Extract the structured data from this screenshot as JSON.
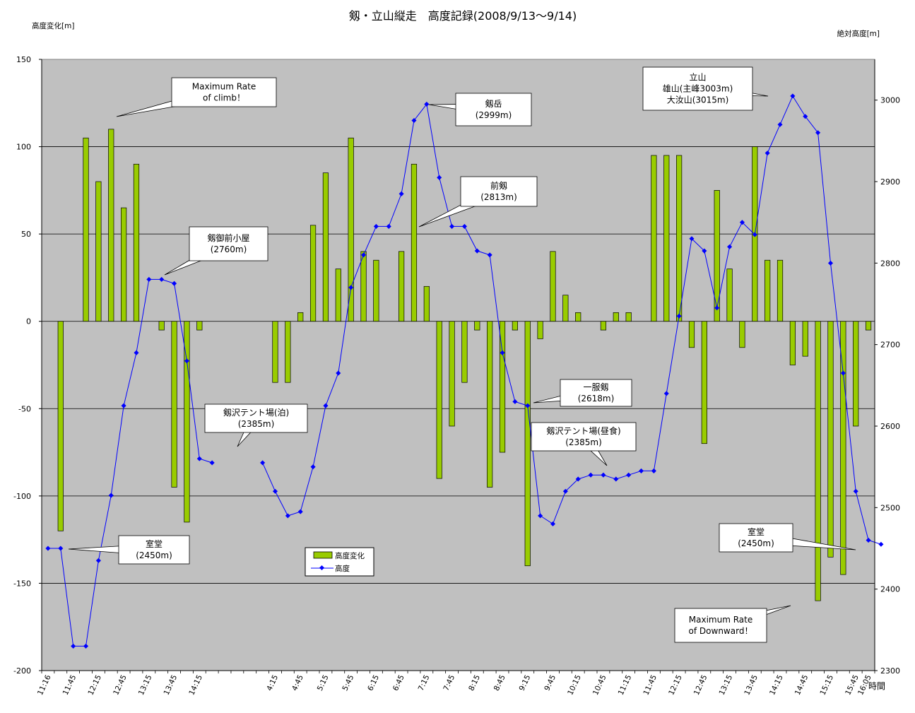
{
  "chart_data": {
    "type": "bar+line",
    "title": "剱・立山縦走　高度記録(2008/9/13～9/14)",
    "ylabel_left": "高度変化[m]",
    "ylabel_right": "絶対高度[m]",
    "xlabel": "時間",
    "ylim_left": [
      -200,
      150
    ],
    "yticks_left": [
      150,
      100,
      50,
      0,
      -50,
      -100,
      -150,
      -200
    ],
    "ylim_right": [
      2300,
      3050
    ],
    "yticks_right": [
      3000,
      2900,
      2800,
      2700,
      2600,
      2500,
      2400,
      2300
    ],
    "grid": true,
    "legend": {
      "placement": "bottom-center",
      "entries": [
        "高度変化",
        "高度"
      ]
    },
    "x_tick_labels": [
      "11:16",
      "11:45",
      "12:15",
      "12:45",
      "13:15",
      "13:45",
      "14:15",
      "4:15",
      "4:45",
      "5:15",
      "5:45",
      "6:15",
      "6:45",
      "7:15",
      "7:45",
      "8:15",
      "8:45",
      "9:15",
      "9:45",
      "10:15",
      "10:45",
      "11:15",
      "11:45",
      "12:15",
      "12:45",
      "13:15",
      "13:45",
      "14:15",
      "14:45",
      "15:15",
      "15:45",
      "16:05"
    ],
    "x_tick_slots": [
      0,
      2,
      4,
      6,
      8,
      10,
      12,
      18,
      20,
      22,
      24,
      26,
      28,
      30,
      32,
      34,
      36,
      38,
      40,
      42,
      44,
      46,
      48,
      50,
      52,
      54,
      56,
      58,
      60,
      62,
      64,
      65
    ],
    "n_slots": 66,
    "series": [
      {
        "name": "高度変化",
        "kind": "bar",
        "values": [
          null,
          -120,
          null,
          105,
          80,
          110,
          65,
          90,
          null,
          -5,
          -95,
          -115,
          -5,
          null,
          null,
          null,
          null,
          null,
          -35,
          -35,
          5,
          55,
          85,
          30,
          105,
          40,
          35,
          null,
          40,
          90,
          20,
          -90,
          -60,
          -35,
          -5,
          -95,
          -75,
          -5,
          -140,
          -10,
          40,
          15,
          5,
          null,
          -5,
          5,
          5,
          null,
          95,
          95,
          95,
          -15,
          -70,
          75,
          30,
          -15,
          100,
          35,
          35,
          -25,
          -20,
          -160,
          -135,
          -145,
          -60,
          -5
        ]
      },
      {
        "name": "高度",
        "kind": "line",
        "values": [
          2450,
          2450,
          2330,
          2330,
          2435,
          2515,
          2625,
          2690,
          2780,
          2780,
          2775,
          2680,
          2560,
          2555,
          null,
          null,
          null,
          2555,
          2520,
          2490,
          2495,
          2550,
          2625,
          2665,
          2770,
          2810,
          2845,
          2845,
          2885,
          2975,
          2995,
          2905,
          2845,
          2845,
          2815,
          2810,
          2690,
          2630,
          2625,
          2490,
          2480,
          2520,
          2535,
          2540,
          2540,
          2535,
          2540,
          2545,
          2545,
          2640,
          2735,
          2830,
          2815,
          2745,
          2820,
          2850,
          2835,
          2935,
          2970,
          3005,
          2980,
          2960,
          2800,
          2665,
          2520,
          2460,
          2455
        ]
      }
    ],
    "annotations": [
      {
        "lines": [
          "Maximum Rate",
          "of climb！"
        ]
      },
      {
        "lines": [
          "剱御前小屋",
          "(2760m)"
        ]
      },
      {
        "lines": [
          "室堂",
          "(2450m)"
        ]
      },
      {
        "lines": [
          "剱沢テント場(泊)",
          "(2385m)"
        ]
      },
      {
        "lines": [
          "剱岳",
          "(2999m)"
        ]
      },
      {
        "lines": [
          "前剱",
          "(2813m)"
        ]
      },
      {
        "lines": [
          "一服剱",
          "(2618m)"
        ]
      },
      {
        "lines": [
          "剱沢テント場(昼食)",
          "(2385m)"
        ]
      },
      {
        "lines": [
          "立山",
          "雄山(主峰3003m)",
          "大汝山(3015m)"
        ]
      },
      {
        "lines": [
          "室堂",
          "(2450m)"
        ]
      },
      {
        "lines": [
          "Maximum Rate",
          "of Downward！"
        ]
      }
    ],
    "colors": {
      "plot_bg": "#c0c0c0",
      "bar": "#99cc00",
      "line": "#0000ff",
      "grid": "#000000"
    }
  }
}
